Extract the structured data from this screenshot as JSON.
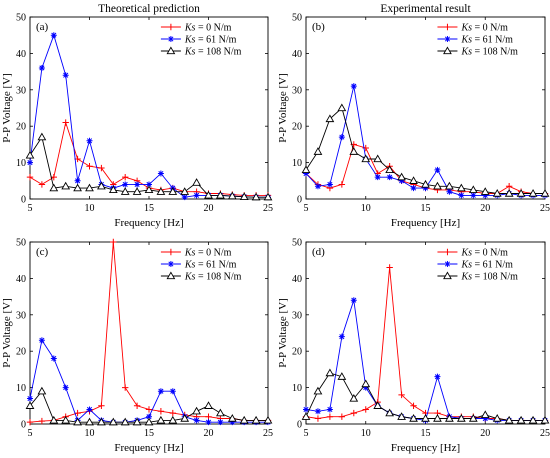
{
  "chart_data": [
    {
      "type": "line",
      "panel": "(a)",
      "title": "Theoretical prediction",
      "xlabel": "Frequency [Hz]",
      "ylabel": "P-P Voltage [V]",
      "xlim": [
        5,
        25
      ],
      "ylim": [
        0,
        50
      ],
      "xticks": [
        "5",
        "10",
        "15",
        "20",
        "25"
      ],
      "yticks": [
        "0",
        "10",
        "20",
        "30",
        "40",
        "50"
      ],
      "legend_position": "top-right",
      "series": [
        {
          "name": "Ks = 0 N/m",
          "color": "#ff0000",
          "marker": "plus",
          "x": [
            5,
            6,
            7,
            8,
            9,
            10,
            11,
            12,
            13,
            14,
            15,
            16,
            17,
            18,
            19,
            20,
            21,
            22,
            23,
            24,
            25
          ],
          "y": [
            6,
            4,
            6,
            21,
            11,
            9,
            8.5,
            4,
            6,
            5,
            3,
            2.5,
            3,
            2,
            2,
            1.5,
            1.5,
            1.2,
            1,
            1,
            1
          ]
        },
        {
          "name": "Ks = 61 N/m",
          "color": "#0000ff",
          "marker": "star",
          "x": [
            5,
            6,
            7,
            8,
            9,
            10,
            11,
            12,
            13,
            14,
            15,
            16,
            17,
            18,
            19,
            20,
            21,
            22,
            23,
            24,
            25
          ],
          "y": [
            10,
            36,
            45,
            34,
            5,
            16,
            4,
            3,
            4,
            4,
            4,
            7,
            3,
            0.5,
            1,
            1,
            1,
            0.8,
            0.6,
            0.5,
            0.5
          ]
        },
        {
          "name": "Ks = 108 N/m",
          "color": "#000000",
          "marker": "triangle",
          "x": [
            5,
            6,
            7,
            8,
            9,
            10,
            11,
            12,
            13,
            14,
            15,
            16,
            17,
            18,
            19,
            20,
            21,
            22,
            23,
            24,
            25
          ],
          "y": [
            12,
            17,
            3,
            3.5,
            3,
            3,
            3.5,
            2.5,
            2,
            2,
            2.5,
            2,
            2,
            2,
            4.5,
            1,
            1,
            0.8,
            0.6,
            0.5,
            0.5
          ]
        }
      ]
    },
    {
      "type": "line",
      "panel": "(b)",
      "title": "Experimental result",
      "xlabel": "Frequency [Hz]",
      "ylabel": "P-P Voltage [V]",
      "xlim": [
        5,
        25
      ],
      "ylim": [
        0,
        50
      ],
      "xticks": [
        "5",
        "10",
        "15",
        "20",
        "25"
      ],
      "yticks": [
        "0",
        "10",
        "20",
        "30",
        "40",
        "50"
      ],
      "legend_position": "top-right",
      "series": [
        {
          "name": "Ks = 0 N/m",
          "color": "#ff0000",
          "marker": "plus",
          "x": [
            5,
            6,
            7,
            8,
            9,
            10,
            11,
            12,
            13,
            14,
            15,
            16,
            17,
            18,
            19,
            20,
            21,
            22,
            23,
            24,
            25
          ],
          "y": [
            7,
            4,
            3,
            4,
            15,
            14,
            7,
            9,
            5,
            4,
            3,
            2.5,
            2.5,
            2,
            2,
            1.5,
            1.5,
            3.5,
            2,
            1.5,
            1.5
          ]
        },
        {
          "name": "Ks = 61 N/m",
          "color": "#0000ff",
          "marker": "star",
          "x": [
            5,
            6,
            7,
            8,
            9,
            10,
            11,
            12,
            13,
            14,
            15,
            16,
            17,
            18,
            19,
            20,
            21,
            22,
            23,
            24,
            25
          ],
          "y": [
            7,
            3.5,
            4,
            17,
            31,
            11,
            6,
            6,
            5,
            3,
            3,
            8,
            2,
            1,
            1,
            1,
            1,
            1.5,
            1,
            1,
            1
          ]
        },
        {
          "name": "Ks = 108 N/m",
          "color": "#000000",
          "marker": "triangle",
          "x": [
            5,
            6,
            7,
            8,
            9,
            10,
            11,
            12,
            13,
            14,
            15,
            16,
            17,
            18,
            19,
            20,
            21,
            22,
            23,
            24,
            25
          ],
          "y": [
            8,
            13,
            22,
            25,
            13,
            11,
            11,
            8,
            6,
            5,
            4,
            3.5,
            3.5,
            3,
            2.5,
            2,
            1.5,
            1.5,
            1.5,
            1.5,
            1.5
          ]
        }
      ]
    },
    {
      "type": "line",
      "panel": "(c)",
      "xlabel": "Frequency [Hz]",
      "ylabel": "P-P Voltage [V]",
      "xlim": [
        5,
        25
      ],
      "ylim": [
        0,
        50
      ],
      "xticks": [
        "5",
        "10",
        "15",
        "20",
        "25"
      ],
      "yticks": [
        "0",
        "10",
        "20",
        "30",
        "40",
        "50"
      ],
      "legend_position": "top-right",
      "series": [
        {
          "name": "Ks = 0 N/m",
          "color": "#ff0000",
          "marker": "plus",
          "x": [
            5,
            6,
            7,
            8,
            9,
            10,
            11,
            12,
            13,
            14,
            15,
            16,
            17,
            18,
            19,
            20,
            21,
            22,
            23,
            24,
            25
          ],
          "y": [
            0.5,
            0.8,
            1,
            2,
            3,
            3.5,
            5,
            50,
            10,
            5,
            4,
            3.5,
            3,
            2.5,
            2,
            2,
            1.5,
            1.5,
            1,
            1,
            1
          ]
        },
        {
          "name": "Ks = 61 N/m",
          "color": "#0000ff",
          "marker": "star",
          "x": [
            5,
            6,
            7,
            8,
            9,
            10,
            11,
            12,
            13,
            14,
            15,
            16,
            17,
            18,
            19,
            20,
            21,
            22,
            23,
            24,
            25
          ],
          "y": [
            7,
            23,
            18,
            10,
            1,
            4,
            1,
            0.5,
            0.5,
            1,
            2,
            9,
            9,
            2,
            1,
            0.5,
            0.5,
            0.5,
            0.5,
            0.5,
            0.5
          ]
        },
        {
          "name": "Ks = 108 N/m",
          "color": "#000000",
          "marker": "triangle",
          "x": [
            5,
            6,
            7,
            8,
            9,
            10,
            11,
            12,
            13,
            14,
            15,
            16,
            17,
            18,
            19,
            20,
            21,
            22,
            23,
            24,
            25
          ],
          "y": [
            5,
            9,
            1,
            1,
            0.5,
            0.5,
            0.5,
            0.5,
            0.5,
            0.5,
            0.5,
            1,
            1,
            1.5,
            3.5,
            5,
            3,
            1.5,
            1,
            1,
            1
          ]
        }
      ]
    },
    {
      "type": "line",
      "panel": "(d)",
      "xlabel": "Frequency [Hz]",
      "ylabel": "P-P Voltage [V]",
      "xlim": [
        5,
        25
      ],
      "ylim": [
        0,
        50
      ],
      "xticks": [
        "5",
        "10",
        "15",
        "20",
        "25"
      ],
      "yticks": [
        "0",
        "10",
        "20",
        "30",
        "40",
        "50"
      ],
      "legend_position": "top-right",
      "series": [
        {
          "name": "Ks = 0 N/m",
          "color": "#ff0000",
          "marker": "plus",
          "x": [
            5,
            6,
            7,
            8,
            9,
            10,
            11,
            12,
            13,
            14,
            15,
            16,
            17,
            18,
            19,
            20,
            21,
            22,
            23,
            24,
            25
          ],
          "y": [
            2,
            1.5,
            2,
            2,
            3,
            4,
            6,
            43,
            8,
            5,
            3,
            3,
            2,
            2,
            2,
            1.5,
            1.5,
            1,
            1,
            1,
            1
          ]
        },
        {
          "name": "Ks = 61 N/m",
          "color": "#0000ff",
          "marker": "star",
          "x": [
            5,
            6,
            7,
            8,
            9,
            10,
            11,
            12,
            13,
            14,
            15,
            16,
            17,
            18,
            19,
            20,
            21,
            22,
            23,
            24,
            25
          ],
          "y": [
            4,
            3.5,
            4,
            24,
            34,
            10,
            5,
            3,
            2,
            1.5,
            1,
            13,
            2,
            1.5,
            1.5,
            1.5,
            1,
            1,
            1,
            1,
            1
          ]
        },
        {
          "name": "Ks = 108 N/m",
          "color": "#000000",
          "marker": "triangle",
          "x": [
            5,
            6,
            7,
            8,
            9,
            10,
            11,
            12,
            13,
            14,
            15,
            16,
            17,
            18,
            19,
            20,
            21,
            22,
            23,
            24,
            25
          ],
          "y": [
            2,
            9,
            14,
            13,
            7,
            11,
            5,
            3,
            2,
            1.5,
            1.5,
            1.5,
            1.5,
            1.5,
            1.5,
            2.5,
            1.5,
            1,
            1,
            1,
            1
          ]
        }
      ]
    }
  ]
}
